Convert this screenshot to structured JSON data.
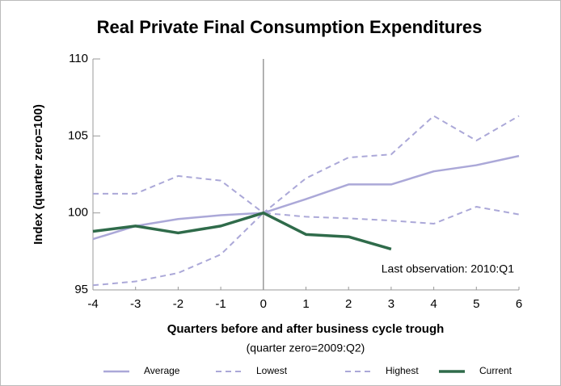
{
  "chart_data": {
    "type": "line",
    "title": "Real Private Final Consumption Expenditures",
    "x_label": "Quarters before and after business cycle trough",
    "x_sublabel": "(quarter zero=2009:Q2)",
    "y_label": "Index (quarter zero=100)",
    "annotation": "Last observation: 2010:Q1",
    "x": [
      -4,
      -3,
      -2,
      -1,
      0,
      1,
      2,
      3,
      4,
      5,
      6
    ],
    "xlim": [
      -4,
      6
    ],
    "xticks": [
      -4,
      -3,
      -2,
      -1,
      0,
      1,
      2,
      3,
      4,
      5,
      6
    ],
    "ylim": [
      95,
      110
    ],
    "yticks": [
      95,
      100,
      105,
      110
    ],
    "xline": 0,
    "legend": "bottom",
    "series": [
      {
        "name": "Average",
        "color": "#aba8d8",
        "linestyle": "solid",
        "values": [
          98.3,
          99.15,
          99.6,
          99.85,
          100,
          100.9,
          101.85,
          101.85,
          102.7,
          103.1,
          103.7
        ]
      },
      {
        "name": "Lowest",
        "color": "#aba8d8",
        "linestyle": "dashed",
        "values": [
          95.3,
          95.55,
          96.1,
          97.3,
          100,
          99.75,
          99.65,
          99.5,
          99.3,
          100.4,
          99.9
        ]
      },
      {
        "name": "Highest",
        "color": "#aba8d8",
        "linestyle": "dashed",
        "values": [
          101.25,
          101.25,
          102.4,
          102.1,
          100,
          102.25,
          103.6,
          103.8,
          106.3,
          104.7,
          106.3
        ]
      },
      {
        "name": "Current",
        "color": "#2f6b4a",
        "linestyle": "thick",
        "values": [
          98.8,
          99.15,
          98.7,
          99.15,
          100,
          98.6,
          98.45,
          97.65,
          null,
          null,
          null
        ]
      }
    ]
  }
}
